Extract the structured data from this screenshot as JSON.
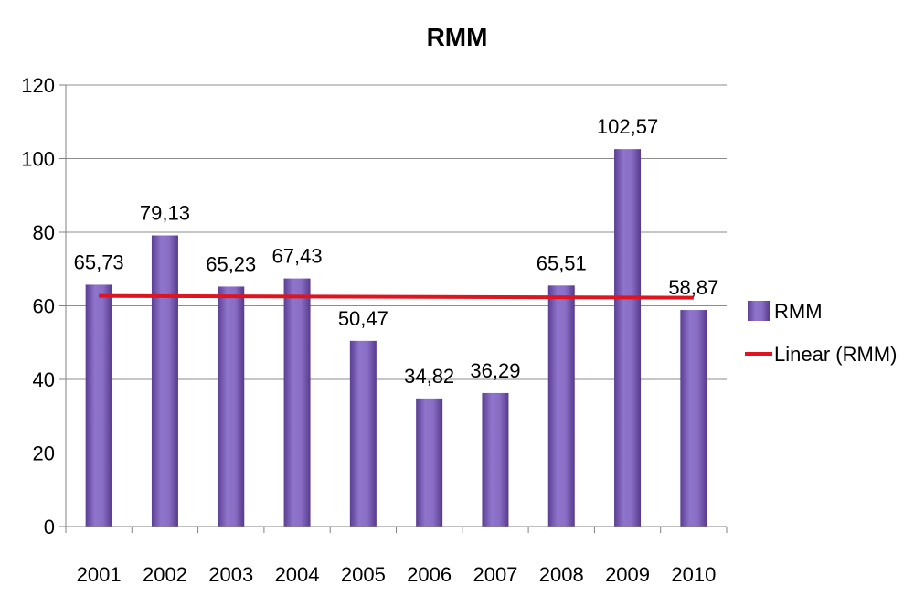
{
  "chart_data": {
    "type": "bar",
    "title": "RMM",
    "xlabel": "",
    "ylabel": "",
    "categories": [
      "2001",
      "2002",
      "2003",
      "2004",
      "2005",
      "2006",
      "2007",
      "2008",
      "2009",
      "2010"
    ],
    "series": [
      {
        "name": "RMM",
        "values": [
          65.73,
          79.13,
          65.23,
          67.43,
          50.47,
          34.82,
          36.29,
          65.51,
          102.57,
          58.87
        ],
        "labels": [
          "65,73",
          "79,13",
          "65,23",
          "67,43",
          "50,47",
          "34,82",
          "36,29",
          "65,51",
          "102,57",
          "58,87"
        ],
        "color": "#7a5cb6"
      }
    ],
    "trendline": {
      "name": "Linear (RMM)",
      "type": "linear",
      "start": 62.7,
      "end": 62.2,
      "color": "#e0141e"
    },
    "ylim": [
      0,
      120
    ],
    "yticks": [
      0,
      20,
      40,
      60,
      80,
      100,
      120
    ],
    "grid": true,
    "legend": {
      "position": "right",
      "entries": [
        "RMM",
        "Linear (RMM)"
      ]
    }
  }
}
